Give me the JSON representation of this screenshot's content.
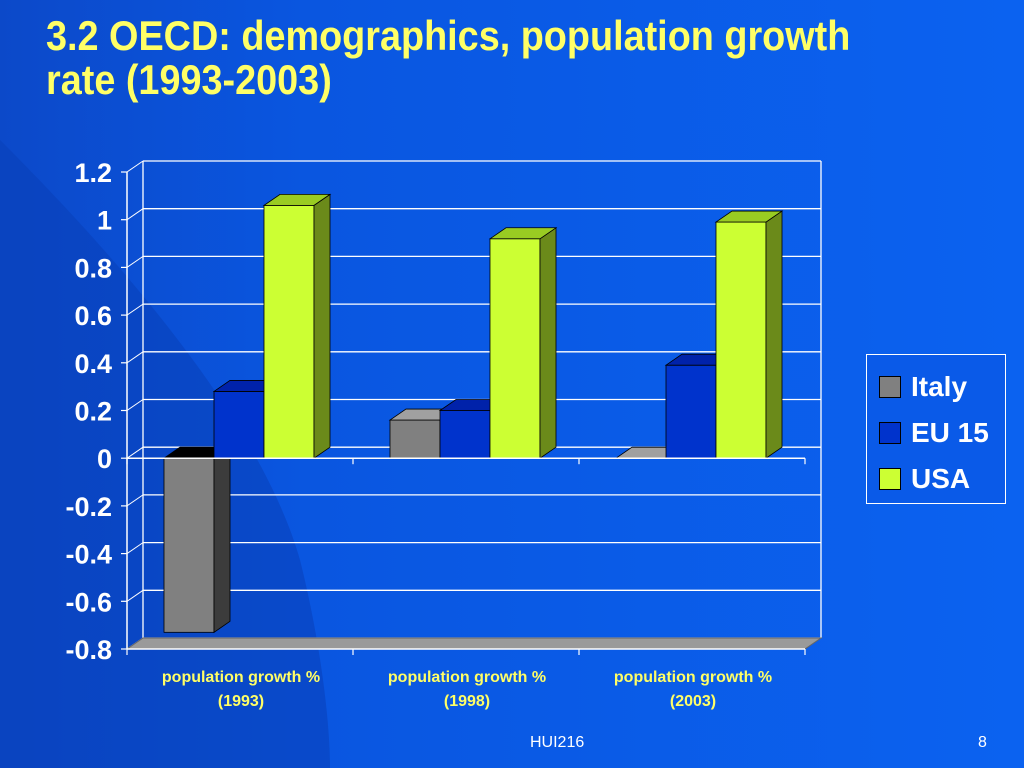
{
  "slide": {
    "title": "3.2 OECD: demographics, population growth rate (1993-2003)",
    "footer_center": "HUI216",
    "page_number": "8"
  },
  "colors": {
    "background": "#0a5ae8",
    "title": "#ffff66",
    "italy": "#808080",
    "eu15": "#0033cc",
    "usa": "#ccff33"
  },
  "chart_data": {
    "type": "bar",
    "style": "3d-clustered-column",
    "categories": [
      "population growth %\n(1993)",
      "population growth %\n(1998)",
      "population growth %\n(2003)"
    ],
    "series": [
      {
        "name": "Italy",
        "values": [
          -0.73,
          0.16,
          0.0
        ]
      },
      {
        "name": "EU 15",
        "values": [
          0.28,
          0.2,
          0.39
        ]
      },
      {
        "name": "USA",
        "values": [
          1.06,
          0.92,
          0.99
        ]
      }
    ],
    "ylim": [
      -0.8,
      1.2
    ],
    "yticks": [
      "1.2",
      "1",
      "0.8",
      "0.6",
      "0.4",
      "0.2",
      "0",
      "-0.2",
      "-0.4",
      "-0.6",
      "-0.8"
    ],
    "grid": true,
    "legend": "right"
  }
}
